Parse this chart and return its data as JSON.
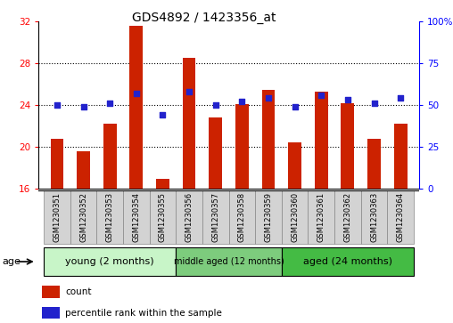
{
  "title": "GDS4892 / 1423356_at",
  "samples": [
    "GSM1230351",
    "GSM1230352",
    "GSM1230353",
    "GSM1230354",
    "GSM1230355",
    "GSM1230356",
    "GSM1230357",
    "GSM1230358",
    "GSM1230359",
    "GSM1230360",
    "GSM1230361",
    "GSM1230362",
    "GSM1230363",
    "GSM1230364"
  ],
  "counts": [
    20.8,
    19.6,
    22.2,
    31.5,
    17.0,
    28.5,
    22.8,
    24.1,
    25.4,
    20.4,
    25.3,
    24.2,
    20.8,
    22.2
  ],
  "percentiles": [
    50,
    49,
    51,
    57,
    44,
    58,
    50,
    52,
    54,
    49,
    56,
    53,
    51,
    54
  ],
  "ylim_left": [
    16,
    32
  ],
  "ylim_right": [
    0,
    100
  ],
  "yticks_left": [
    16,
    20,
    24,
    28,
    32
  ],
  "yticks_right": [
    0,
    25,
    50,
    75,
    100
  ],
  "groups": [
    {
      "label": "young (2 months)",
      "start": 0,
      "end": 5
    },
    {
      "label": "middle aged (12 months)",
      "start": 5,
      "end": 9
    },
    {
      "label": "aged (24 months)",
      "start": 9,
      "end": 14
    }
  ],
  "group_colors": [
    "#c8f5c8",
    "#7dcc7d",
    "#44bb44"
  ],
  "bar_color": "#CC2200",
  "dot_color": "#2222CC",
  "bar_width": 0.5,
  "title_fontsize": 10,
  "tick_fontsize": 7.5,
  "label_fontsize": 6,
  "legend_count_label": "count",
  "legend_pct_label": "percentile rank within the sample",
  "age_label": "age"
}
